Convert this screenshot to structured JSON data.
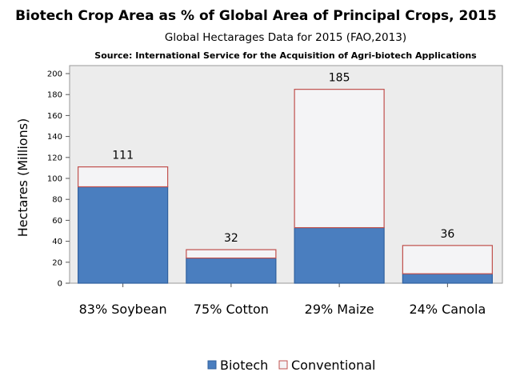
{
  "chart_data": {
    "type": "bar",
    "stacked": true,
    "title": "Biotech Crop Area as % of Global Area of Principal Crops, 2015",
    "subtitle": "Global Hectarages Data for 2015 (FAO,2013)",
    "source": "Source: International Service for the Acquisition of Agri-biotech Applications",
    "xlabel": "",
    "ylabel": "Hectares (Millions)",
    "ylim": [
      0,
      200
    ],
    "yticks": [
      0,
      20,
      40,
      60,
      80,
      100,
      120,
      140,
      160,
      180,
      200
    ],
    "categories": [
      "83% Soybean",
      "75% Cotton",
      "29% Maize",
      "24% Canola"
    ],
    "series": [
      {
        "name": "Biotech",
        "values": [
          92,
          24,
          53,
          9
        ],
        "color": "#4a7ebf",
        "stroke": "#30609e"
      },
      {
        "name": "Conventional",
        "values": [
          19,
          8,
          132,
          27
        ],
        "color": "#f4f4f6",
        "stroke": "#c0504d"
      }
    ],
    "totals": [
      "111",
      "32",
      "185",
      "36"
    ],
    "legend": "bottom",
    "grid": false,
    "plot_background": "#ececec"
  }
}
